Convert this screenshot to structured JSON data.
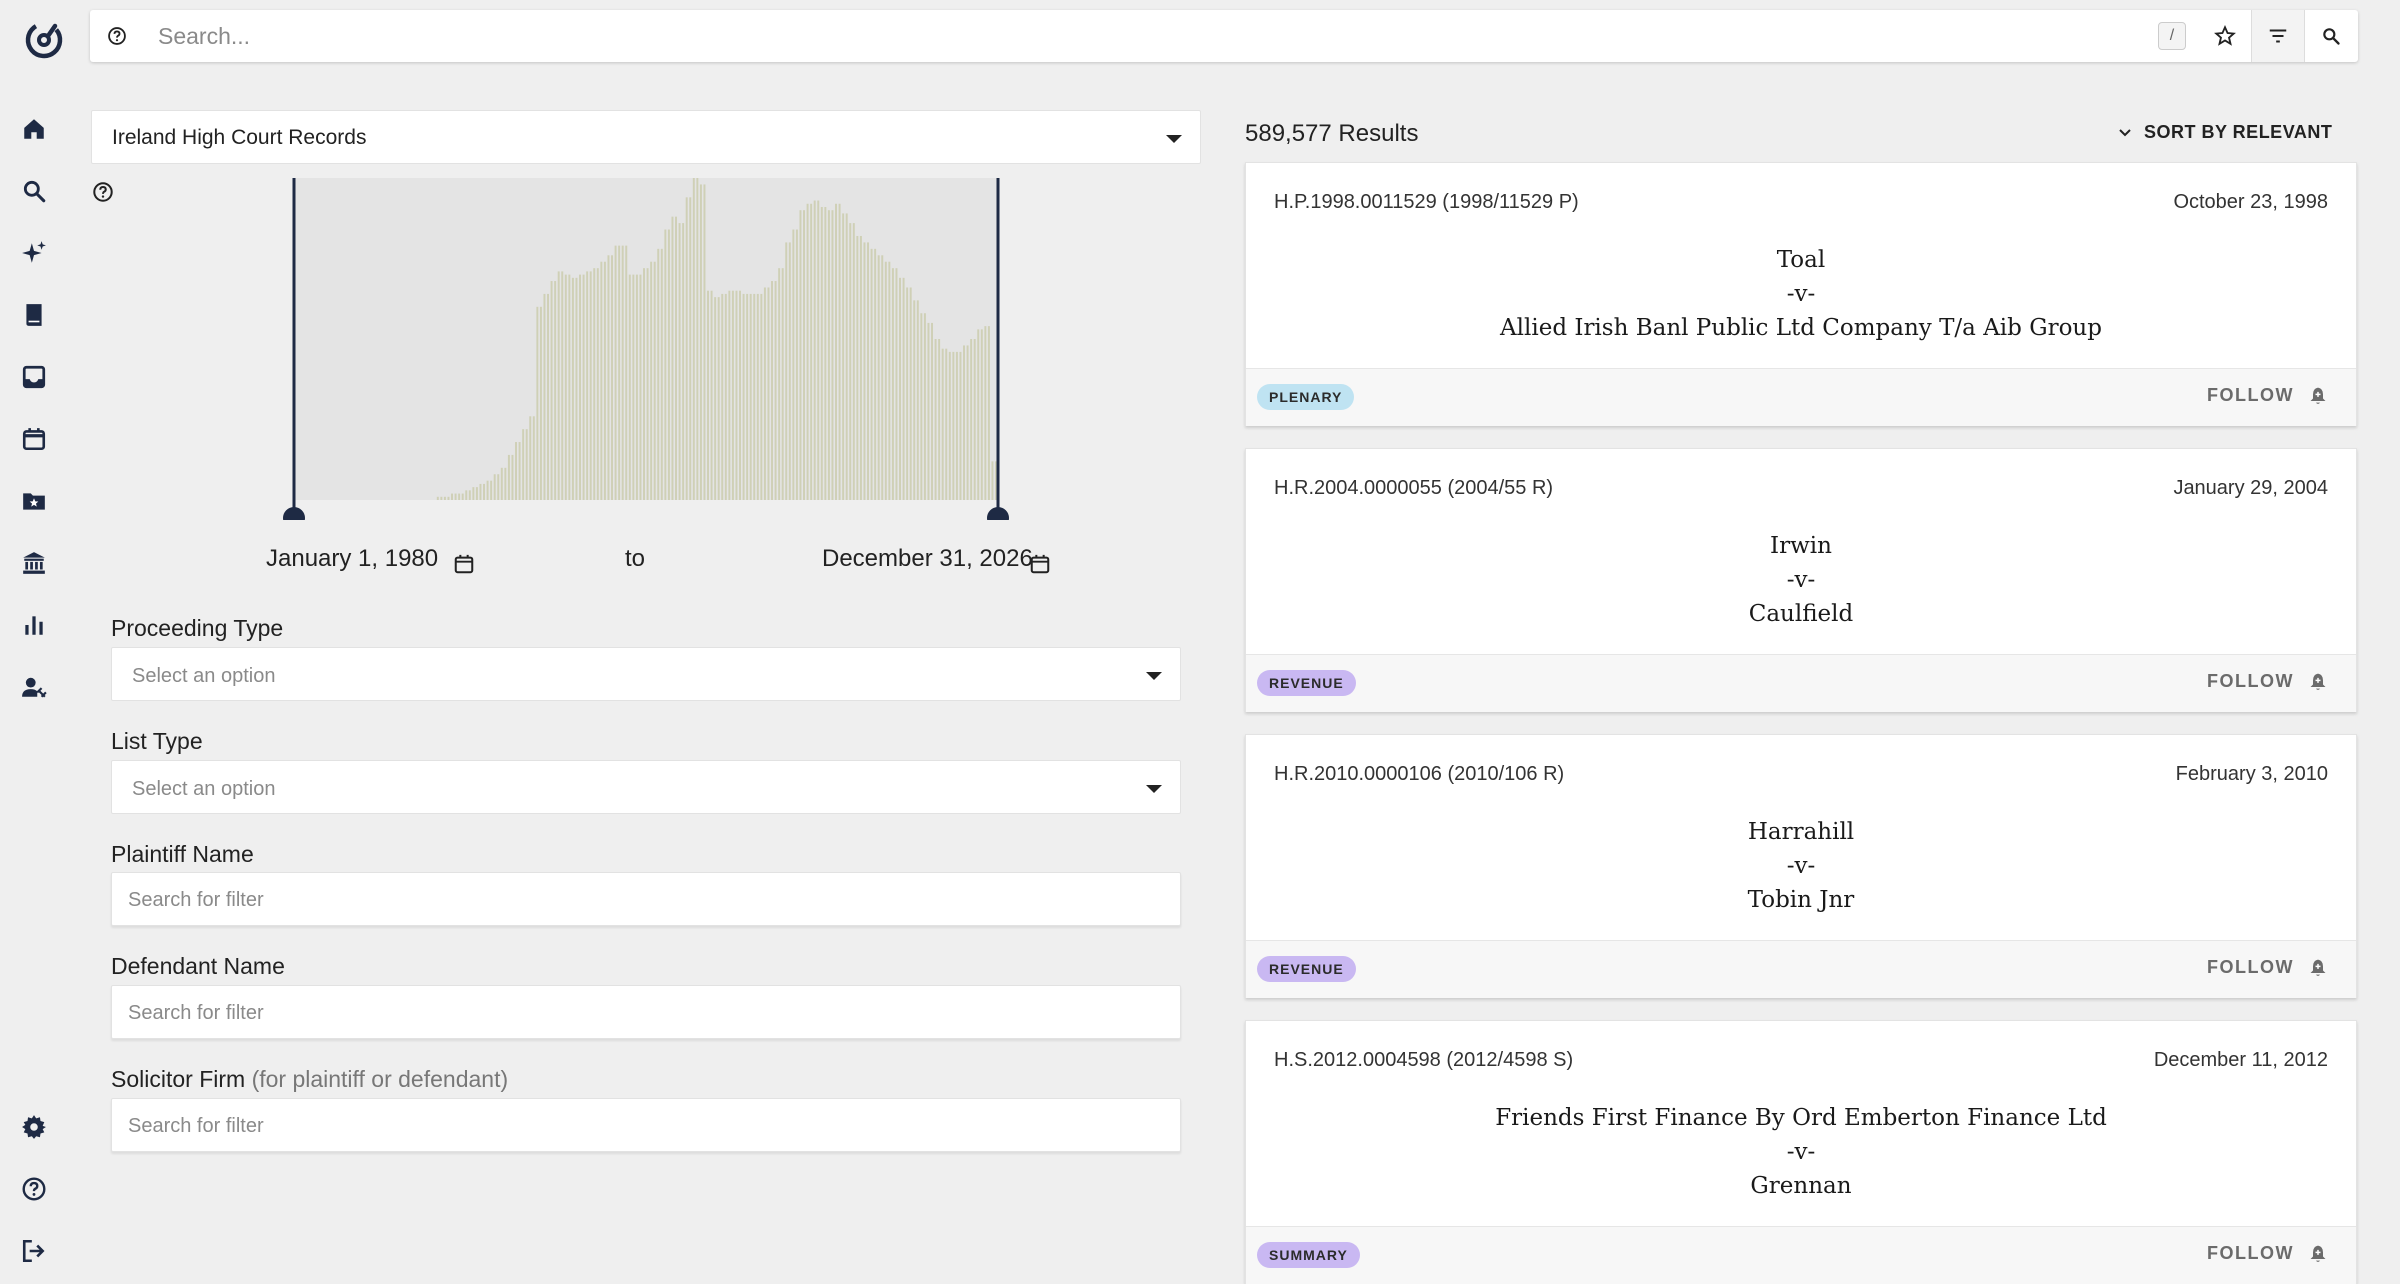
{
  "search": {
    "placeholder": "Search...",
    "shortcut_key": "/"
  },
  "dataset": {
    "selected": "Ireland High Court Records"
  },
  "date_range": {
    "from": "January 1, 1980",
    "to_label": "to",
    "to": "December 31, 2026"
  },
  "histogram_data": {
    "type": "bar",
    "range": [
      "January 1, 1980",
      "December 31, 2026"
    ],
    "values": [
      0,
      0,
      0,
      0,
      0,
      0,
      0,
      0,
      0,
      0,
      0,
      0,
      0,
      0,
      0,
      0,
      0,
      0,
      0,
      0,
      0,
      0,
      0,
      0,
      0,
      0,
      0,
      0,
      0,
      0,
      0,
      0,
      0,
      0,
      0,
      0,
      0,
      0,
      0,
      0,
      1,
      1,
      1,
      1,
      2,
      2,
      2,
      2,
      3,
      3,
      4,
      4,
      5,
      5,
      6,
      6,
      8,
      8,
      10,
      10,
      14,
      14,
      18,
      18,
      22,
      22,
      26,
      26,
      60,
      60,
      64,
      64,
      68,
      68,
      71,
      71,
      70,
      70,
      69,
      69,
      70,
      70,
      71,
      71,
      72,
      72,
      74,
      74,
      76,
      76,
      79,
      79,
      79,
      79,
      70,
      70,
      70,
      70,
      72,
      72,
      74,
      74,
      78,
      78,
      84,
      84,
      88,
      88,
      86,
      86,
      94,
      94,
      100,
      100,
      98,
      98,
      65,
      65,
      63,
      63,
      64,
      64,
      65,
      65,
      65,
      65,
      64,
      64,
      64,
      64,
      64,
      64,
      66,
      66,
      68,
      68,
      72,
      72,
      80,
      80,
      84,
      84,
      90,
      90,
      92,
      92,
      93,
      93,
      91,
      91,
      90,
      90,
      92,
      92,
      89,
      89,
      86,
      86,
      82,
      82,
      80,
      80,
      78,
      78,
      76,
      76,
      74,
      74,
      72,
      72,
      69,
      69,
      66,
      66,
      62,
      62,
      58,
      58,
      55,
      55,
      50,
      50,
      47,
      47,
      46,
      46,
      46,
      46,
      48,
      48,
      50,
      50,
      53,
      53,
      54,
      54,
      12,
      12
    ],
    "bar_color": "#cfd0b6",
    "background_color": "#e4e4e4"
  },
  "filters": {
    "proceeding_type": {
      "label": "Proceeding Type",
      "placeholder": "Select an option"
    },
    "list_type": {
      "label": "List Type",
      "placeholder": "Select an option"
    },
    "plaintiff_name": {
      "label": "Plaintiff Name",
      "placeholder": "Search for filter"
    },
    "defendant_name": {
      "label": "Defendant Name",
      "placeholder": "Search for filter"
    },
    "solicitor_firm": {
      "label": "Solicitor Firm",
      "hint": "(for plaintiff or defendant)",
      "placeholder": "Search for filter"
    }
  },
  "results": {
    "count": "589,577 Results",
    "sort_label": "SORT BY RELEVANT",
    "follow_label": "FOLLOW",
    "items": [
      {
        "id": "H.P.1998.0011529 (1998/11529 P)",
        "date": "October 23, 1998",
        "plaintiff": "Toal",
        "versus": "-v-",
        "defendant": "Allied Irish Banl Public Ltd Company T/a Aib Group",
        "badge": "PLENARY",
        "badge_color": "#bfe3f2"
      },
      {
        "id": "H.R.2004.0000055 (2004/55 R)",
        "date": "January 29, 2004",
        "plaintiff": "Irwin",
        "versus": "-v-",
        "defendant": "Caulfield",
        "badge": "REVENUE",
        "badge_color": "#c9b8f2"
      },
      {
        "id": "H.R.2010.0000106 (2010/106 R)",
        "date": "February 3, 2010",
        "plaintiff": "Harrahill",
        "versus": "-v-",
        "defendant": "Tobin Jnr",
        "badge": "REVENUE",
        "badge_color": "#c9b8f2"
      },
      {
        "id": "H.S.2012.0004598 (2012/4598 S)",
        "date": "December 11, 2012",
        "plaintiff": "Friends First Finance By Ord Emberton Finance Ltd",
        "versus": "-v-",
        "defendant": "Grennan",
        "badge": "SUMMARY",
        "badge_color": "#c9b8f2"
      }
    ]
  },
  "nav": {
    "top": [
      "logo-icon",
      "home-icon",
      "search-icon",
      "sparkle-icon",
      "book-icon",
      "inbox-icon",
      "calendar-icon",
      "starred-folder-icon",
      "courthouse-icon",
      "bar-chart-icon",
      "user-gavel-icon"
    ],
    "bottom": [
      "gear-icon",
      "help-icon",
      "logout-icon"
    ]
  },
  "colors": {
    "accent_dark": "#1e2a44",
    "page_bg": "#efefef"
  }
}
